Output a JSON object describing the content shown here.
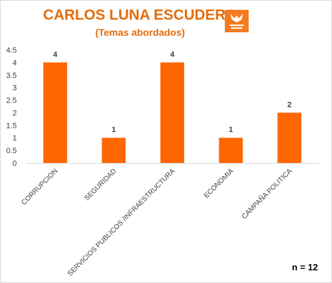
{
  "chart_data": {
    "type": "bar",
    "title": "CARLOS LUNA ESCUDERO",
    "subtitle": "(Temas abordados)",
    "categories": [
      "CORRUPCION",
      "SEGURIDAD",
      "SERVICIOS PUBLICOS /INFRAESTRUCTURA",
      "ECONOMIA",
      "CAMPAÑA POLITICA"
    ],
    "values": [
      4,
      1,
      4,
      1,
      2
    ],
    "data_labels": [
      "4",
      "1",
      "4",
      "1",
      "2"
    ],
    "ylim": [
      0,
      4.5
    ],
    "yticks": [
      "0",
      "0.5",
      "1",
      "1.5",
      "2",
      "2.5",
      "3",
      "3.5",
      "4",
      "4.5"
    ],
    "grid": false,
    "xlabel": "",
    "ylabel": "",
    "bar_color": "#ff6600"
  },
  "note": "n = 12",
  "logo": {
    "icon": "party-logo-icon",
    "color": "#f47b20"
  }
}
